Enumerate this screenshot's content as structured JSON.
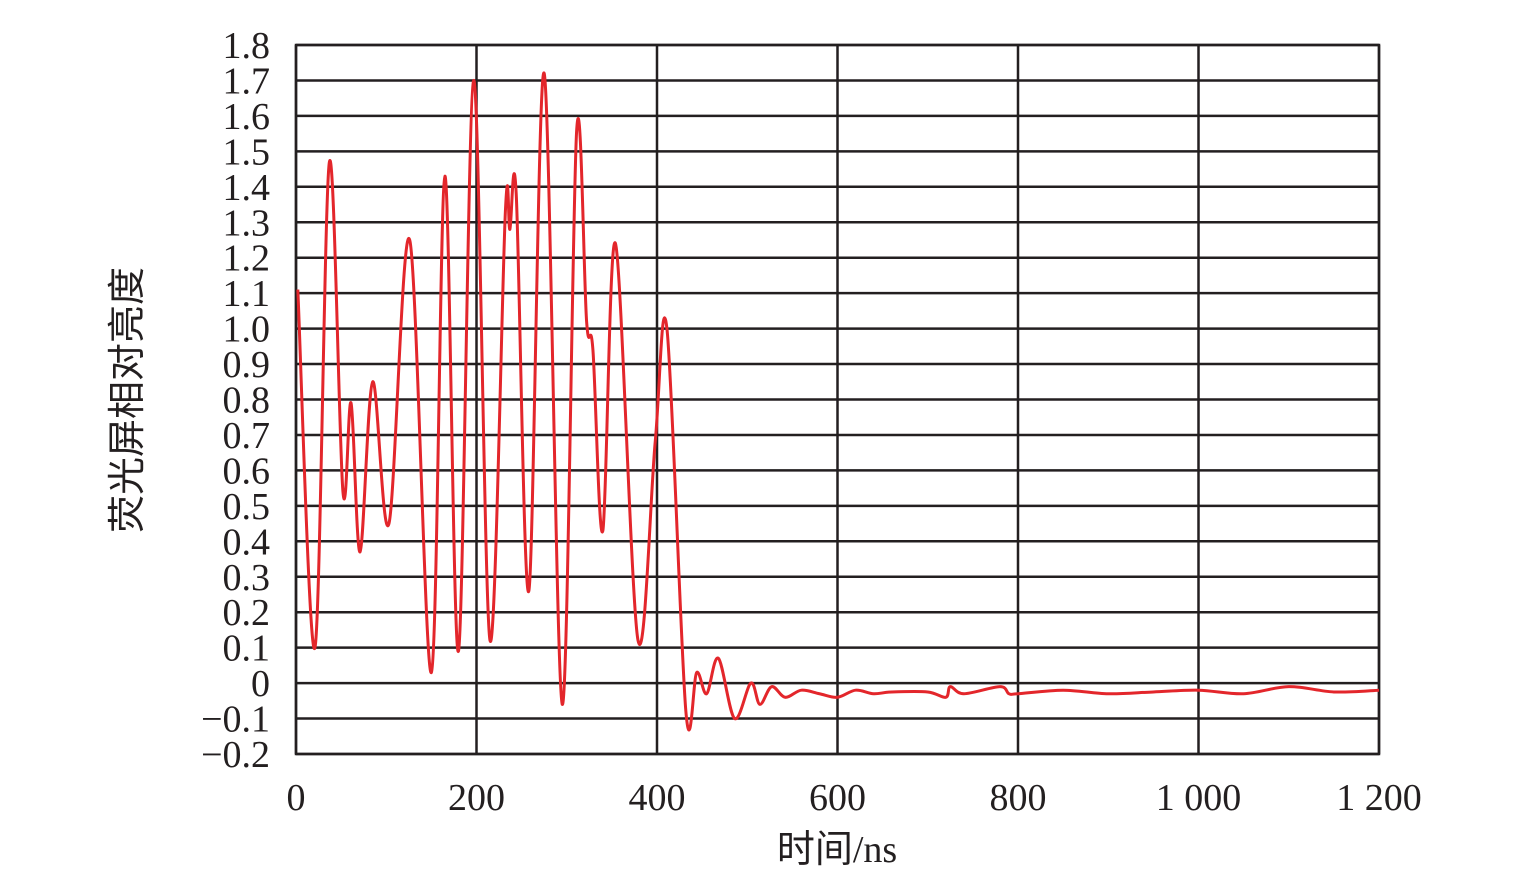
{
  "chart_data": {
    "type": "line",
    "xlabel": "时间/ns",
    "ylabel": "荧光屏相对亮度",
    "x": [
      2,
      21,
      37,
      52,
      61,
      71,
      85,
      103,
      126,
      150,
      165,
      180,
      197,
      215,
      232,
      237,
      244,
      258,
      275,
      295,
      311,
      322,
      329,
      340,
      354,
      379,
      398,
      411,
      432,
      444,
      455,
      468,
      486,
      504,
      514,
      527,
      542,
      560,
      580,
      600,
      620,
      640,
      660,
      700,
      720,
      725,
      740,
      780,
      790,
      800,
      850,
      900,
      950,
      1000,
      1050,
      1100,
      1150,
      1200
    ],
    "series": [
      {
        "name": "荧光屏相对亮度",
        "color": "#e3262b",
        "values": [
          1.11,
          0.1,
          1.47,
          0.54,
          0.79,
          0.37,
          0.85,
          0.45,
          1.25,
          0.03,
          1.43,
          0.09,
          1.7,
          0.12,
          1.33,
          1.28,
          1.38,
          0.26,
          1.72,
          -0.06,
          1.56,
          1.02,
          0.94,
          0.43,
          1.24,
          0.12,
          0.68,
          1.0,
          -0.08,
          0.03,
          -0.03,
          0.07,
          -0.1,
          0.0,
          -0.06,
          -0.01,
          -0.04,
          -0.02,
          -0.03,
          -0.04,
          -0.02,
          -0.03,
          -0.025,
          -0.025,
          -0.04,
          -0.01,
          -0.03,
          -0.01,
          -0.03,
          -0.03,
          -0.02,
          -0.03,
          -0.025,
          -0.02,
          -0.03,
          -0.01,
          -0.025,
          -0.02
        ]
      }
    ],
    "xlim": [
      0,
      1200
    ],
    "xticks": [
      0,
      200,
      400,
      600,
      800,
      {
        "value": 1000,
        "label": "1 000"
      },
      {
        "value": 1200,
        "label": "1 200"
      }
    ],
    "ylim": [
      -0.2,
      1.8
    ],
    "yticks": [
      {
        "value": -0.2,
        "label": "−0.2"
      },
      {
        "value": -0.1,
        "label": "−0.1"
      },
      0,
      0.1,
      0.2,
      0.3,
      0.4,
      0.5,
      0.6,
      0.7,
      0.8,
      0.9,
      {
        "value": 1,
        "label": "1.0"
      },
      1.1,
      1.2,
      1.3,
      1.4,
      1.5,
      1.6,
      1.7,
      1.8
    ],
    "grid": true
  }
}
